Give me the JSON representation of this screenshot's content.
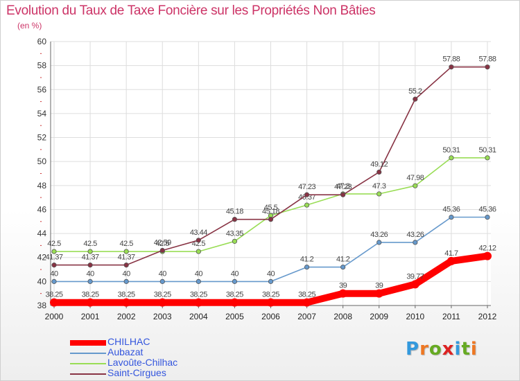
{
  "title": "Evolution du Taux de Taxe Foncière sur les Propriétés Non Bâties",
  "subtitle": "(en %)",
  "brand": "Proxiti",
  "chart_data": {
    "type": "line",
    "title": "Evolution du Taux de Taxe Foncière sur les Propriétés Non Bâties",
    "ylabel": "(en %)",
    "xlabel": "",
    "x": [
      "2000",
      "2001",
      "2002",
      "2003",
      "2004",
      "2005",
      "2006",
      "2007",
      "2008",
      "2009",
      "2010",
      "2011",
      "2012"
    ],
    "ylim": [
      38,
      60
    ],
    "yticks": [
      38,
      40,
      42,
      44,
      46,
      48,
      50,
      52,
      54,
      56,
      58,
      60
    ],
    "grid": true,
    "legend_position": "bottom-left",
    "series": [
      {
        "name": "CHILHAC",
        "color": "#ff0000",
        "bold": true,
        "values": [
          38.25,
          38.25,
          38.25,
          38.25,
          38.25,
          38.25,
          38.25,
          38.25,
          39,
          39,
          39.77,
          41.7,
          42.12
        ]
      },
      {
        "name": "Aubazat",
        "color": "#6699cc",
        "values": [
          40,
          40,
          40,
          40,
          40,
          40,
          40,
          41.2,
          41.2,
          43.26,
          43.26,
          45.36,
          45.36
        ]
      },
      {
        "name": "Lavoûte-Chilhac",
        "color": "#99dd55",
        "values": [
          42.5,
          42.5,
          42.5,
          42.5,
          42.5,
          43.35,
          45.5,
          46.37,
          47.3,
          47.3,
          47.98,
          50.31,
          50.31
        ]
      },
      {
        "name": "Saint-Cirgues",
        "color": "#883344",
        "values": [
          41.37,
          41.37,
          41.37,
          42.59,
          43.44,
          45.18,
          45.18,
          47.23,
          47.23,
          49.12,
          55.2,
          57.88,
          57.88
        ]
      }
    ]
  }
}
